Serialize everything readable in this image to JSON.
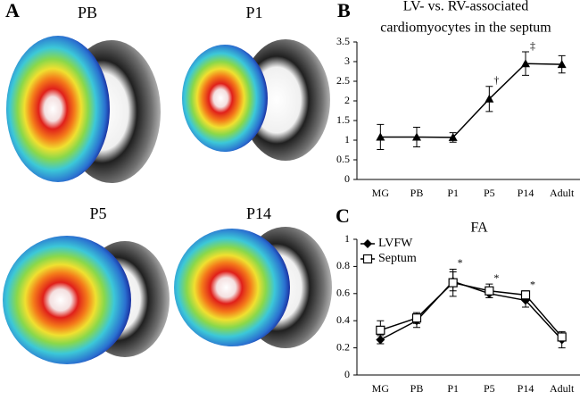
{
  "panels": {
    "a": {
      "label": "A",
      "images": [
        "PB",
        "P1",
        "P5",
        "P14"
      ]
    },
    "b": "B",
    "c": "C"
  },
  "chart_data": [
    {
      "type": "line",
      "title": [
        "LV- vs. RV-associated",
        "cardiomyocytes in the septum"
      ],
      "categories": [
        "MG",
        "PB",
        "P1",
        "P5",
        "P14",
        "Adult"
      ],
      "series": [
        {
          "color": "#000000",
          "marker": "triangle",
          "values": [
            1.08,
            1.08,
            1.07,
            2.05,
            2.95,
            2.93
          ],
          "errors": [
            0.32,
            0.25,
            0.12,
            0.32,
            0.3,
            0.22
          ]
        }
      ],
      "ylim": [
        0,
        3.5
      ],
      "yticks": [
        0,
        0.5,
        1,
        1.5,
        2,
        2.5,
        3,
        3.5
      ],
      "annotations": [
        {
          "text": "†",
          "x": "P5"
        },
        {
          "text": "‡",
          "x": "P14"
        }
      ]
    },
    {
      "type": "line",
      "title": "FA",
      "categories": [
        "MG",
        "PB",
        "P1",
        "P5",
        "P14",
        "Adult"
      ],
      "series": [
        {
          "name": "LVFW",
          "color": "#000000",
          "marker": "diamond",
          "values": [
            0.26,
            0.4,
            0.69,
            0.6,
            0.55,
            0.26
          ],
          "errors": [
            0.03,
            0.05,
            0.07,
            0.03,
            0.05,
            0.06
          ]
        },
        {
          "name": "Septum",
          "color": "#000000",
          "marker": "open-square",
          "values": [
            0.33,
            0.42,
            0.68,
            0.62,
            0.59,
            0.28
          ],
          "errors": [
            0.07,
            0.04,
            0.1,
            0.05,
            0.03,
            0.03
          ]
        }
      ],
      "ylim": [
        0,
        1
      ],
      "yticks": [
        0,
        0.2,
        0.4,
        0.6,
        0.8,
        1
      ],
      "legend": "top-left",
      "annotations": [
        {
          "text": "*",
          "x": "P1"
        },
        {
          "text": "*",
          "x": "P5"
        },
        {
          "text": "*",
          "x": "P14"
        }
      ]
    }
  ]
}
